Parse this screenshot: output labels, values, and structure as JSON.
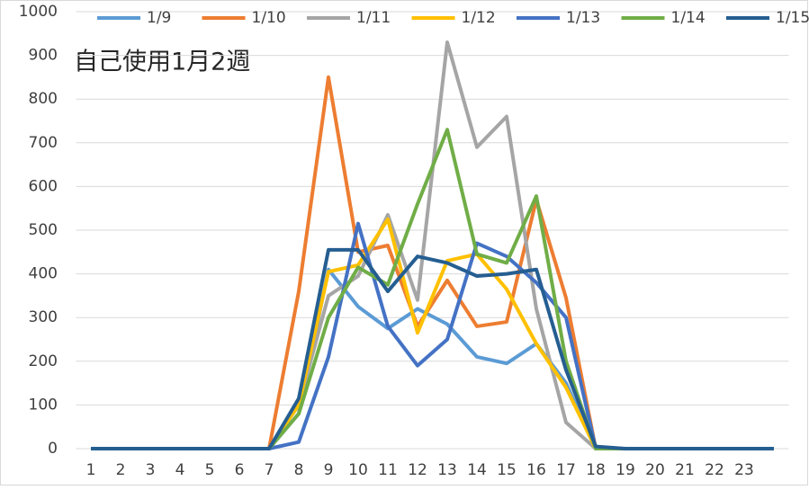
{
  "chart_data": {
    "type": "line",
    "annotation": "自己使用1月2週",
    "categories": [
      "1",
      "2",
      "3",
      "4",
      "5",
      "6",
      "7",
      "8",
      "9",
      "10",
      "11",
      "12",
      "13",
      "14",
      "15",
      "16",
      "17",
      "18",
      "19",
      "20",
      "21",
      "22",
      "23",
      null
    ],
    "series": [
      {
        "name": "1/9",
        "color": "#5b9bd5",
        "values": [
          0,
          0,
          0,
          0,
          0,
          0,
          0,
          80,
          410,
          325,
          275,
          320,
          285,
          210,
          195,
          240,
          150,
          0,
          0,
          0,
          0,
          0,
          0,
          0
        ]
      },
      {
        "name": "1/10",
        "color": "#ed7d31",
        "values": [
          0,
          0,
          0,
          0,
          0,
          0,
          0,
          360,
          850,
          450,
          465,
          280,
          385,
          280,
          290,
          570,
          345,
          0,
          0,
          0,
          0,
          0,
          0,
          0
        ]
      },
      {
        "name": "1/11",
        "color": "#a5a5a5",
        "values": [
          0,
          0,
          0,
          0,
          0,
          0,
          0,
          100,
          350,
          395,
          535,
          340,
          930,
          690,
          760,
          320,
          60,
          0,
          0,
          0,
          0,
          0,
          0,
          0
        ]
      },
      {
        "name": "1/12",
        "color": "#ffc000",
        "values": [
          0,
          0,
          0,
          0,
          0,
          0,
          0,
          100,
          405,
          420,
          525,
          265,
          430,
          445,
          365,
          240,
          140,
          0,
          0,
          0,
          0,
          0,
          0,
          0
        ]
      },
      {
        "name": "1/13",
        "color": "#4472c4",
        "values": [
          0,
          0,
          0,
          0,
          0,
          0,
          0,
          15,
          210,
          515,
          280,
          190,
          250,
          470,
          440,
          380,
          300,
          0,
          0,
          0,
          0,
          0,
          0,
          0
        ]
      },
      {
        "name": "1/14",
        "color": "#70ad47",
        "values": [
          0,
          0,
          0,
          0,
          0,
          0,
          0,
          80,
          300,
          415,
          375,
          560,
          730,
          445,
          425,
          578,
          200,
          0,
          0,
          0,
          0,
          0,
          0,
          0
        ]
      },
      {
        "name": "1/15",
        "color": "#255e91",
        "values": [
          0,
          0,
          0,
          0,
          0,
          0,
          0,
          115,
          455,
          455,
          360,
          440,
          425,
          395,
          400,
          410,
          180,
          5,
          0,
          0,
          0,
          0,
          0,
          0
        ]
      }
    ],
    "ylim": [
      0,
      1000
    ],
    "yticks": [
      0,
      100,
      200,
      300,
      400,
      500,
      600,
      700,
      800,
      900,
      1000
    ],
    "grid": true,
    "legend": "top"
  }
}
